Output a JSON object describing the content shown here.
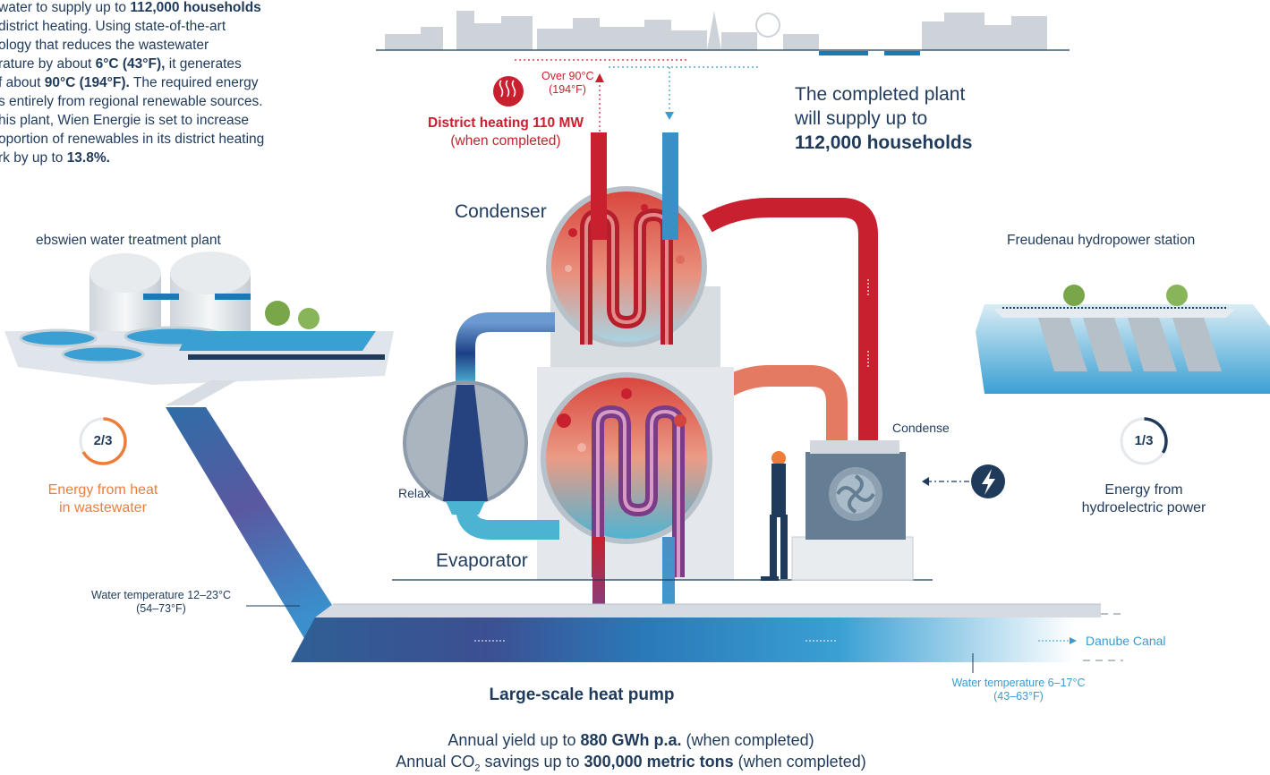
{
  "intro": {
    "l1a": "water to supply up to ",
    "l1b": "112,000 households",
    "l2": "district heating. Using state-of-the-art",
    "l3": "ology that reduces the wastewater",
    "l4a": "rature by about ",
    "l4b": "6°C (43°F),",
    "l4c": " it generates",
    "l5a": "f about ",
    "l5b": "90°C (194°F).",
    "l5c": " The required energy",
    "l6": "s entirely from regional renewable sources.",
    "l7": "his plant, Wien Energie is set to increase",
    "l8": "oportion of renewables in its district heating",
    "l9a": "rk by up to ",
    "l9b": "13.8%."
  },
  "district": {
    "temp1": "Over 90°C",
    "temp2": "(194°F)",
    "title": "District heating 110 MW",
    "sub": "(when completed)"
  },
  "completed": {
    "l1": "The completed plant",
    "l2": "will supply up to",
    "l3": "112,000 households"
  },
  "labels": {
    "condenser": "Condenser",
    "evaporator": "Evaporator",
    "relax": "Relax",
    "condense": "Condense",
    "ebswien": "ebswien water treatment plant",
    "freudenau": "Freudenau hydropower station",
    "danube": "Danube Canal",
    "title": "Large-scale heat pump"
  },
  "energy_heat": {
    "fraction": "2/3",
    "share": 0.667,
    "l1": "Energy from heat",
    "l2": "in wastewater"
  },
  "energy_hydro": {
    "fraction": "1/3",
    "share": 0.333,
    "l1": "Energy from",
    "l2": "hydroelectric power"
  },
  "water_in": {
    "l1": "Water temperature 12–23°C",
    "l2": "(54–73°F)"
  },
  "water_out": {
    "l1": "Water temperature 6–17°C",
    "l2": "(43–63°F)"
  },
  "annual": {
    "y1": "Annual yield up to ",
    "y2": "880 GWh p.a.",
    "y3": " (when completed)",
    "c1": "Annual CO",
    "c2": "2",
    "c3": " savings up to ",
    "c4": "300,000 metric tons",
    "c5": " (when completed)"
  },
  "colors": {
    "red": "#c8202f",
    "orange": "#ee7d3a",
    "navy": "#1f3a5a",
    "teal": "#3a9bd0"
  }
}
